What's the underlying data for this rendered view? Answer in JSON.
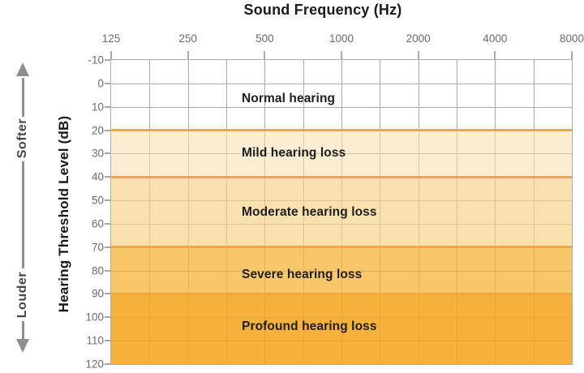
{
  "chart_data": {
    "type": "area",
    "title": "Sound Frequency (Hz)",
    "ylabel": "Hearing Threshold Level (dB)",
    "x_ticks": [
      "125",
      "250",
      "500",
      "1000",
      "2000",
      "4000",
      "8000"
    ],
    "x_scale": "octaves (log2), minor gridline at each half-octave",
    "y_ticks": [
      "-10",
      "0",
      "10",
      "20",
      "30",
      "40",
      "50",
      "60",
      "70",
      "80",
      "90",
      "100",
      "110",
      "120"
    ],
    "y_min": -10,
    "y_max": 120,
    "y_step": 10,
    "y_axis_inverted": true,
    "grid": true,
    "legend": "none",
    "axis_color": "#ACACAC",
    "tick_label_color": "#6A6B6D",
    "band_boundary_color": "#F0A83C",
    "band_boundaries": [
      20,
      40,
      70,
      90
    ],
    "direction_labels": {
      "softer": "Softer",
      "louder": "Louder"
    },
    "bands": [
      {
        "label": "Normal hearing",
        "from": -10,
        "to": 20,
        "fill": "#FFFFFF",
        "grid": "#ACACAC",
        "label_at": 6.5
      },
      {
        "label": "Mild hearing loss",
        "from": 20,
        "to": 40,
        "fill": "#FAEDD2",
        "grid": "#D9C9A8",
        "label_at": 30
      },
      {
        "label": "Moderate hearing loss",
        "from": 40,
        "to": 70,
        "fill": "#FAE1AE",
        "grid": "#E0C48E",
        "label_at": 55
      },
      {
        "label": "Severe hearing loss",
        "from": 70,
        "to": 90,
        "fill": "#F8C76A",
        "grid": "#E3B158",
        "label_at": 82
      },
      {
        "label": "Profound hearing loss",
        "from": 90,
        "to": 120,
        "fill": "#F6B13C",
        "grid": "#ECA52F",
        "label_at": 104
      }
    ]
  }
}
